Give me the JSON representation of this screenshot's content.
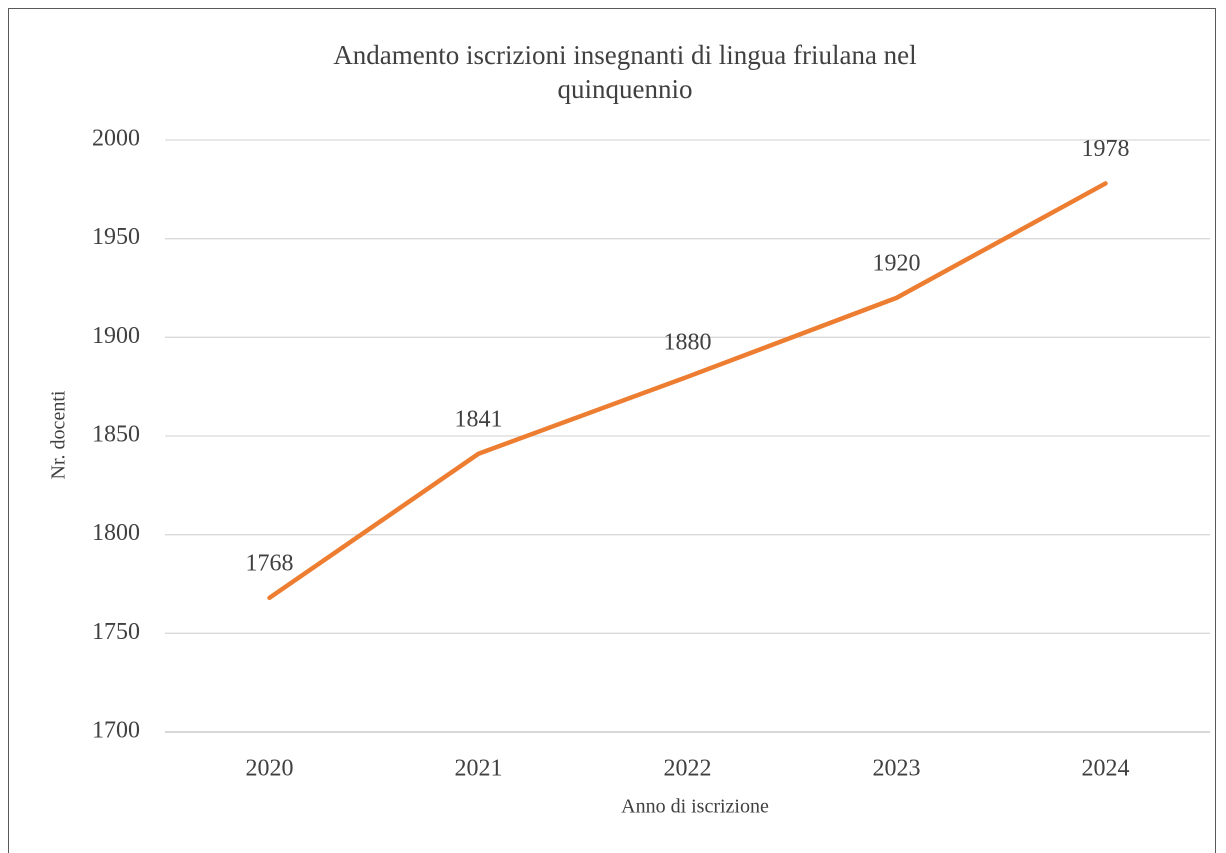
{
  "chart_data": {
    "type": "line",
    "title": "Andamento iscrizioni insegnanti di lingua friulana nel quinquennio",
    "x_label": "Anno di iscrizione",
    "y_label": "Nr. docenti",
    "categories": [
      "2020",
      "2021",
      "2022",
      "2023",
      "2024"
    ],
    "series": [
      {
        "name": "Nr. docenti",
        "color": "#ed7d31",
        "values": [
          1768,
          1841,
          1880,
          1920,
          1978
        ]
      }
    ],
    "ylim": [
      1700,
      2000
    ],
    "yticks": [
      1700,
      1750,
      1800,
      1850,
      1900,
      1950,
      2000
    ],
    "grid": true,
    "data_labels": true
  }
}
